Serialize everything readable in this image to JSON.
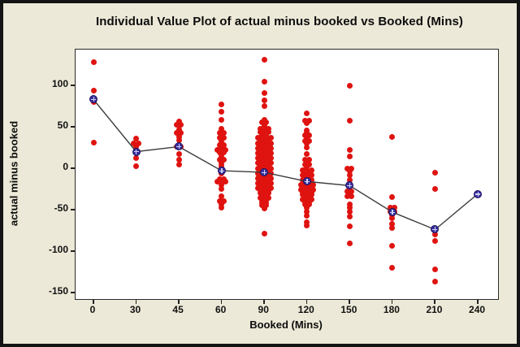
{
  "window": {
    "background_color": "#ece9d8",
    "border_color": "#141414",
    "plot_background": "#ffffff"
  },
  "chart_data": {
    "type": "scatter",
    "variant": "individual-value-plot",
    "title": "Individual Value Plot of actual minus booked vs Booked (Mins)",
    "xlabel": "Booked (Mins)",
    "ylabel": "actual minus booked",
    "categories": [
      "0",
      "30",
      "45",
      "60",
      "90",
      "120",
      "150",
      "180",
      "210",
      "240"
    ],
    "y_ticks": [
      100,
      50,
      0,
      -50,
      -100,
      -150
    ],
    "ylim": [
      -155,
      145
    ],
    "grid": false,
    "legend_position": "none",
    "point_color": "#df1310",
    "mean_marker_color": "#3a2f9e",
    "mean_line_color": "#3c3c3c",
    "means": [
      83,
      20,
      26,
      -3,
      -5,
      -16,
      -21,
      -53,
      -74,
      -31
    ],
    "points_by_category": [
      [
        [
          128,
          1
        ],
        [
          94,
          1
        ],
        [
          84,
          1
        ],
        [
          80,
          1
        ],
        [
          31,
          1
        ]
      ],
      [
        [
          36,
          1
        ],
        [
          30,
          2
        ],
        [
          26,
          1
        ],
        [
          21,
          1
        ],
        [
          19,
          1
        ],
        [
          12,
          1
        ],
        [
          2,
          1
        ]
      ],
      [
        [
          56,
          1
        ],
        [
          52,
          2
        ],
        [
          47,
          1
        ],
        [
          43,
          2
        ],
        [
          38,
          1
        ],
        [
          34,
          1
        ],
        [
          26,
          2
        ],
        [
          17,
          1
        ],
        [
          10,
          1
        ],
        [
          4,
          1
        ]
      ],
      [
        [
          77,
          1
        ],
        [
          68,
          1
        ],
        [
          58,
          1
        ],
        [
          48,
          1
        ],
        [
          45,
          1
        ],
        [
          43,
          2
        ],
        [
          40,
          1
        ],
        [
          37,
          2
        ],
        [
          34,
          1
        ],
        [
          31,
          1
        ],
        [
          28,
          2
        ],
        [
          25,
          1
        ],
        [
          22,
          3
        ],
        [
          19,
          2
        ],
        [
          16,
          1
        ],
        [
          13,
          1
        ],
        [
          10,
          2
        ],
        [
          7,
          1
        ],
        [
          4,
          1
        ],
        [
          1,
          1
        ],
        [
          -3,
          1
        ],
        [
          -6,
          1
        ],
        [
          -13,
          2
        ],
        [
          -16,
          3
        ],
        [
          -20,
          1
        ],
        [
          -25,
          1
        ],
        [
          -34,
          1
        ],
        [
          -40,
          2
        ],
        [
          -44,
          1
        ],
        [
          -48,
          1
        ]
      ],
      [
        [
          131,
          1
        ],
        [
          104,
          1
        ],
        [
          91,
          1
        ],
        [
          82,
          1
        ],
        [
          75,
          1
        ],
        [
          58,
          1
        ],
        [
          55,
          2
        ],
        [
          51,
          1
        ],
        [
          48,
          3
        ],
        [
          44,
          3
        ],
        [
          40,
          2
        ],
        [
          37,
          4
        ],
        [
          34,
          3
        ],
        [
          30,
          4
        ],
        [
          27,
          3
        ],
        [
          24,
          4
        ],
        [
          21,
          3
        ],
        [
          18,
          4
        ],
        [
          15,
          3
        ],
        [
          12,
          4
        ],
        [
          9,
          3
        ],
        [
          6,
          4
        ],
        [
          3,
          3
        ],
        [
          0,
          4
        ],
        [
          -3,
          3
        ],
        [
          -6,
          4
        ],
        [
          -9,
          3
        ],
        [
          -12,
          4
        ],
        [
          -15,
          3
        ],
        [
          -18,
          4
        ],
        [
          -21,
          3
        ],
        [
          -24,
          4
        ],
        [
          -27,
          3
        ],
        [
          -30,
          3
        ],
        [
          -33,
          2
        ],
        [
          -36,
          3
        ],
        [
          -39,
          2
        ],
        [
          -42,
          2
        ],
        [
          -45,
          2
        ],
        [
          -49,
          1
        ],
        [
          -79,
          1
        ]
      ],
      [
        [
          66,
          1
        ],
        [
          57,
          2
        ],
        [
          54,
          1
        ],
        [
          46,
          1
        ],
        [
          43,
          1
        ],
        [
          40,
          2
        ],
        [
          36,
          1
        ],
        [
          33,
          2
        ],
        [
          30,
          1
        ],
        [
          25,
          1
        ],
        [
          17,
          1
        ],
        [
          10,
          2
        ],
        [
          7,
          1
        ],
        [
          4,
          2
        ],
        [
          1,
          1
        ],
        [
          -2,
          3
        ],
        [
          -5,
          2
        ],
        [
          -8,
          3
        ],
        [
          -11,
          2
        ],
        [
          -14,
          3
        ],
        [
          -17,
          2
        ],
        [
          -20,
          4
        ],
        [
          -23,
          3
        ],
        [
          -26,
          4
        ],
        [
          -29,
          3
        ],
        [
          -32,
          3
        ],
        [
          -35,
          2
        ],
        [
          -38,
          3
        ],
        [
          -41,
          2
        ],
        [
          -44,
          2
        ],
        [
          -48,
          1
        ],
        [
          -52,
          1
        ],
        [
          -57,
          1
        ],
        [
          -65,
          1
        ],
        [
          -69,
          1
        ]
      ],
      [
        [
          100,
          1
        ],
        [
          57,
          1
        ],
        [
          22,
          1
        ],
        [
          14,
          1
        ],
        [
          0,
          2
        ],
        [
          -3,
          1
        ],
        [
          -8,
          1
        ],
        [
          -14,
          1
        ],
        [
          -19,
          1
        ],
        [
          -22,
          1
        ],
        [
          -28,
          2
        ],
        [
          -31,
          1
        ],
        [
          -34,
          2
        ],
        [
          -44,
          1
        ],
        [
          -48,
          1
        ],
        [
          -52,
          1
        ],
        [
          -58,
          1
        ],
        [
          -70,
          1
        ],
        [
          -91,
          1
        ]
      ],
      [
        [
          38,
          1
        ],
        [
          -35,
          1
        ],
        [
          -48,
          2
        ],
        [
          -52,
          2
        ],
        [
          -56,
          1
        ],
        [
          -60,
          1
        ],
        [
          -67,
          1
        ],
        [
          -72,
          1
        ],
        [
          -94,
          1
        ],
        [
          -120,
          1
        ]
      ],
      [
        [
          -5,
          1
        ],
        [
          -25,
          1
        ],
        [
          -74,
          1
        ],
        [
          -80,
          1
        ],
        [
          -88,
          1
        ],
        [
          -122,
          1
        ],
        [
          -137,
          1
        ]
      ],
      [
        [
          -31,
          1
        ]
      ]
    ]
  }
}
